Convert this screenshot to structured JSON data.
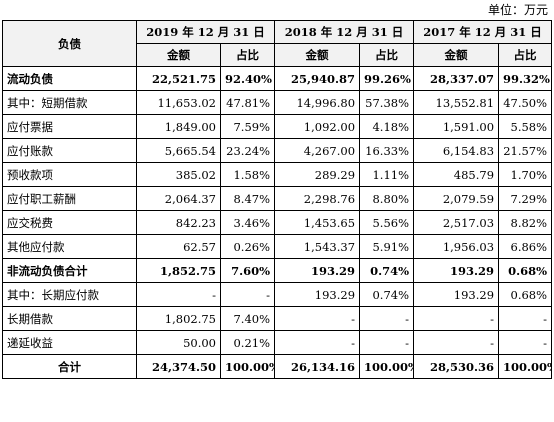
{
  "unit_label": "单位：万元",
  "header": {
    "col_item": "负债",
    "years": [
      "2019 年 12 月 31 日",
      "2018 年 12 月 31 日",
      "2017 年 12 月 31 日"
    ],
    "sub_amount": "金额",
    "sub_ratio": "占比"
  },
  "rows": [
    {
      "label": "流动负债",
      "v": [
        "22,521.75",
        "92.40%",
        "25,940.87",
        "99.26%",
        "28,337.07",
        "99.32%"
      ]
    },
    {
      "label": "其中：短期借款",
      "v": [
        "11,653.02",
        "47.81%",
        "14,996.80",
        "57.38%",
        "13,552.81",
        "47.50%"
      ]
    },
    {
      "label": "应付票据",
      "v": [
        "1,849.00",
        "7.59%",
        "1,092.00",
        "4.18%",
        "1,591.00",
        "5.58%"
      ]
    },
    {
      "label": "应付账款",
      "v": [
        "5,665.54",
        "23.24%",
        "4,267.00",
        "16.33%",
        "6,154.83",
        "21.57%"
      ]
    },
    {
      "label": "预收款项",
      "v": [
        "385.02",
        "1.58%",
        "289.29",
        "1.11%",
        "485.79",
        "1.70%"
      ]
    },
    {
      "label": "应付职工薪酬",
      "v": [
        "2,064.37",
        "8.47%",
        "2,298.76",
        "8.80%",
        "2,079.59",
        "7.29%"
      ]
    },
    {
      "label": "应交税费",
      "v": [
        "842.23",
        "3.46%",
        "1,453.65",
        "5.56%",
        "2,517.03",
        "8.82%"
      ]
    },
    {
      "label": "其他应付款",
      "v": [
        "62.57",
        "0.26%",
        "1,543.37",
        "5.91%",
        "1,956.03",
        "6.86%"
      ]
    },
    {
      "label": "非流动负债合计",
      "v": [
        "1,852.75",
        "7.60%",
        "193.29",
        "0.74%",
        "193.29",
        "0.68%"
      ]
    },
    {
      "label": "其中：长期应付款",
      "v": [
        "-",
        "-",
        "193.29",
        "0.74%",
        "193.29",
        "0.68%"
      ]
    },
    {
      "label": "长期借款",
      "v": [
        "1,802.75",
        "7.40%",
        "-",
        "-",
        "-",
        "-"
      ]
    },
    {
      "label": "递延收益",
      "v": [
        "50.00",
        "0.21%",
        "-",
        "-",
        "-",
        "-"
      ]
    },
    {
      "label": "合计",
      "v": [
        "24,374.50",
        "100.00%",
        "26,134.16",
        "100.00%",
        "28,530.36",
        "100.00%"
      ]
    }
  ]
}
